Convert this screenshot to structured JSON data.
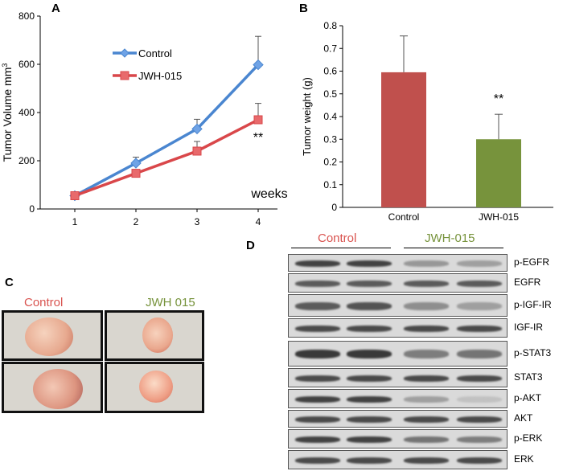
{
  "panels": {
    "a": {
      "letter": "A"
    },
    "b": {
      "letter": "B"
    },
    "c": {
      "letter": "C"
    },
    "d": {
      "letter": "D"
    }
  },
  "chart_data": [
    {
      "type": "line",
      "panel": "A",
      "ylabel": "Tumor Volume mm",
      "ylabel_superscript": "3",
      "xlabel": "weeks",
      "x": [
        1,
        2,
        3,
        4
      ],
      "xticks": [
        "1",
        "2",
        "3",
        "4"
      ],
      "yticks": [
        "0",
        "200",
        "400",
        "600",
        "800"
      ],
      "ylim": [
        0,
        800
      ],
      "series": [
        {
          "name": "Control",
          "values": [
            55,
            190,
            332,
            598
          ],
          "errors": [
            0,
            25,
            40,
            118
          ],
          "color": "#4a86d0",
          "marker": "diamond"
        },
        {
          "name": "JWH-015",
          "values": [
            55,
            148,
            240,
            370
          ],
          "errors": [
            0,
            0,
            40,
            68
          ],
          "color": "#d9474a",
          "marker": "square"
        }
      ],
      "annotations": [
        {
          "text": "**",
          "x": 4
        }
      ],
      "legend_position": "upper-center"
    },
    {
      "type": "bar",
      "panel": "B",
      "ylabel": "Tumor weight (g)",
      "categories": [
        "Control",
        "JWH-015"
      ],
      "values": [
        0.595,
        0.3
      ],
      "errors": [
        0.16,
        0.11
      ],
      "colors": [
        "#c0504d",
        "#77933c"
      ],
      "yticks": [
        "0",
        "0.1",
        "0.2",
        "0.3",
        "0.4",
        "0.5",
        "0.6",
        "0.7",
        "0.8"
      ],
      "ylim": [
        0,
        0.8
      ],
      "annotations": [
        {
          "text": "**",
          "category": "JWH-015"
        }
      ]
    }
  ],
  "panel_c": {
    "control_label": "Control",
    "treated_label": "JWH 015",
    "control_color": "#d9534f",
    "treated_color": "#77933c"
  },
  "panel_d": {
    "control_label": "Control",
    "treated_label": "JWH-015",
    "control_color": "#d9534f",
    "treated_color": "#77933c",
    "rows": [
      {
        "label": "p-EGFR",
        "intensity": [
          0.85,
          0.85,
          0.35,
          0.3
        ]
      },
      {
        "label": "EGFR",
        "intensity": [
          0.7,
          0.7,
          0.7,
          0.7
        ]
      },
      {
        "label": "p-IGF-IR",
        "intensity": [
          0.7,
          0.75,
          0.4,
          0.3
        ]
      },
      {
        "label": "IGF-IR",
        "intensity": [
          0.8,
          0.8,
          0.8,
          0.8
        ]
      },
      {
        "label": "p-STAT3",
        "intensity": [
          0.9,
          0.9,
          0.5,
          0.55
        ]
      },
      {
        "label": "STAT3",
        "intensity": [
          0.8,
          0.8,
          0.8,
          0.8
        ]
      },
      {
        "label": "p-AKT",
        "intensity": [
          0.85,
          0.85,
          0.3,
          0.1
        ]
      },
      {
        "label": "AKT",
        "intensity": [
          0.8,
          0.8,
          0.8,
          0.8
        ]
      },
      {
        "label": "p-ERK",
        "intensity": [
          0.85,
          0.85,
          0.55,
          0.5
        ]
      },
      {
        "label": "ERK",
        "intensity": [
          0.8,
          0.8,
          0.8,
          0.8
        ]
      }
    ]
  }
}
